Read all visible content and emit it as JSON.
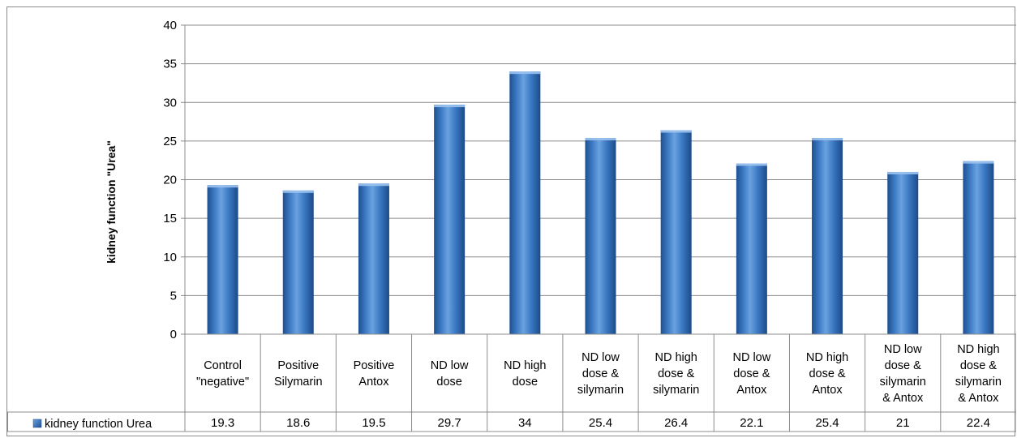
{
  "chart_data": {
    "type": "bar",
    "categories": [
      "Control \"negative\"",
      "Positive Silymarin",
      "Positive Antox",
      "ND low dose",
      "ND high dose",
      "ND low dose & silymarin",
      "ND high dose & silymarin",
      "ND low dose & Antox",
      "ND high dose & Antox",
      "ND low dose & silymarin & Antox",
      "ND high dose & silymarin & Antox"
    ],
    "category_lines": [
      [
        "Control",
        "\"negative\""
      ],
      [
        "Positive",
        "Silymarin"
      ],
      [
        "Positive",
        "Antox"
      ],
      [
        "ND low",
        "dose"
      ],
      [
        "ND high",
        "dose"
      ],
      [
        "ND low",
        "dose &",
        "silymarin"
      ],
      [
        "ND high",
        "dose &",
        "silymarin"
      ],
      [
        "ND low",
        "dose &",
        "Antox"
      ],
      [
        "ND high",
        "dose &",
        "Antox"
      ],
      [
        "ND low",
        "dose &",
        "silymarin",
        "& Antox"
      ],
      [
        "ND high",
        "dose &",
        "silymarin",
        "& Antox"
      ]
    ],
    "series": [
      {
        "name": "kidney function Urea",
        "values": [
          19.3,
          18.6,
          19.5,
          29.7,
          34,
          25.4,
          26.4,
          22.1,
          25.4,
          21,
          22.4
        ],
        "value_labels": [
          "19.3",
          "18.6",
          "19.5",
          "29.7",
          "34",
          "25.4",
          "26.4",
          "22.1",
          "25.4",
          "21",
          "22.4"
        ],
        "color": "#3f7fc8"
      }
    ],
    "ylabel": "kidney function \"Urea\"",
    "ylim": [
      0,
      40
    ],
    "yticks": [
      0,
      5,
      10,
      15,
      20,
      25,
      30,
      35,
      40
    ],
    "grid": true,
    "legend": "data-table-left"
  }
}
